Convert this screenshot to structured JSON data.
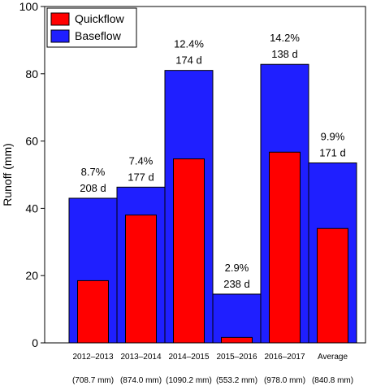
{
  "chart_data": {
    "type": "bar",
    "categories": [
      "2012–2013",
      "2013–2014",
      "2014–2015",
      "2015–2016",
      "2016–2017",
      "Average"
    ],
    "precipitation": [
      "(708.7 mm)",
      "(874.0 mm)",
      "(1090.2 mm)",
      "(553.2 mm)",
      "(978.0 mm)",
      "(840.8 mm)"
    ],
    "series": [
      {
        "name": "Baseflow",
        "values": [
          43,
          46.3,
          81,
          14.5,
          82.8,
          53.5
        ],
        "color": "#1f1fff"
      },
      {
        "name": "Quickflow",
        "values": [
          18.5,
          38,
          54.7,
          1.6,
          56.7,
          34
        ],
        "color": "#ff0000"
      }
    ],
    "annotations": [
      {
        "percent": "8.7%",
        "days": "208 d"
      },
      {
        "percent": "7.4%",
        "days": "177 d"
      },
      {
        "percent": "12.4%",
        "days": "174 d"
      },
      {
        "percent": "2.9%",
        "days": "238 d"
      },
      {
        "percent": "14.2%",
        "days": "138 d"
      },
      {
        "percent": "9.9%",
        "days": "171 d"
      }
    ],
    "ylabel": "Runoff (mm)",
    "xlabel": "",
    "title": "",
    "ylim": [
      0,
      100
    ],
    "yticks": [
      "0",
      "20",
      "40",
      "60",
      "80",
      "100"
    ],
    "legend": {
      "position": "top-left",
      "entries": [
        "Quickflow",
        "Baseflow"
      ]
    },
    "grid": false
  }
}
